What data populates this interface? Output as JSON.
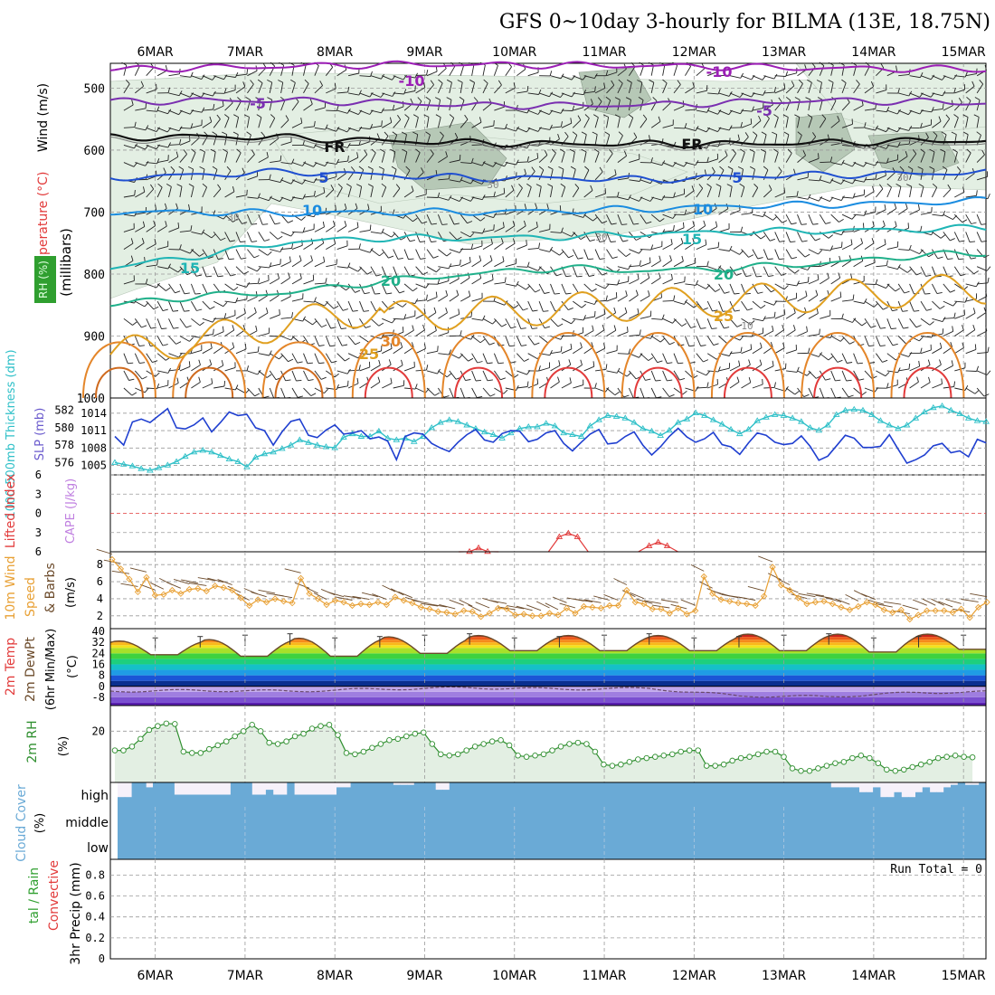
{
  "title": "GFS 0~10day 3-hourly for BILMA (13E, 18.75N)",
  "colors": {
    "grid": "#9a9a9a",
    "rh_fill": "#e3efe3",
    "rh_dark": "#b6c8b6",
    "slp": "#1f3fd0",
    "thickness": "#2fc0c8",
    "li": "#e23b3b",
    "wind_speed": "#e8a034",
    "barb": "#6b4a2a",
    "rh2m": "#2f8f2f",
    "cloud": "#6aaad6",
    "cloud_bg": "#f6f1fa"
  },
  "chart_data": {
    "time_axis": {
      "day_labels": [
        "6MAR",
        "7MAR",
        "8MAR",
        "9MAR",
        "10MAR",
        "11MAR",
        "12MAR",
        "13MAR",
        "14MAR",
        "15MAR"
      ],
      "step_hours": 3,
      "range_days": [
        5.5,
        15.25
      ]
    },
    "panels": [
      {
        "id": "upper-air",
        "type": "heatmap",
        "ylabel": "(millibars)",
        "ylabel_top": "Wind (m/s)",
        "ylabel_mid": "Temperature (°C)",
        "ylabel_rh": "RH (%)",
        "yticks": [
          500,
          600,
          700,
          800,
          900,
          1000
        ],
        "ylim": [
          460,
          1000
        ],
        "temperature_contours": [
          {
            "label": "-10",
            "color": "#9b1fb5",
            "p_by_day": [
              470,
              467,
              465,
              462,
              462,
              463,
              464,
              466,
              468,
              469,
              470
            ]
          },
          {
            "label": "-5",
            "color": "#7a2fb0",
            "p_by_day": [
              522,
              520,
              520,
              523,
              528,
              528,
              527,
              523,
              520,
              522,
              525
            ]
          },
          {
            "label": "FR",
            "color": "#111111",
            "p_by_day": [
              580,
              578,
              580,
              585,
              588,
              590,
              590,
              590,
              588,
              585,
              585
            ]
          },
          {
            "label": "5",
            "color": "#1f4fd0",
            "p_by_day": [
              645,
              640,
              635,
              640,
              645,
              645,
              648,
              642,
              640,
              638,
              635
            ]
          },
          {
            "label": "10",
            "color": "#1a8ce0",
            "p_by_day": [
              700,
              700,
              702,
              700,
              700,
              698,
              695,
              690,
              688,
              685,
              680
            ]
          },
          {
            "label": "15",
            "color": "#1fb5b5",
            "p_by_day": [
              790,
              770,
              748,
              742,
              742,
              740,
              735,
              732,
              730,
              728,
              725
            ]
          },
          {
            "label": "20",
            "color": "#20b08a",
            "p_by_day": [
              850,
              835,
              830,
              812,
              800,
              790,
              795,
              790,
              782,
              770,
              765
            ]
          },
          {
            "label": "25",
            "color": "#e0a020",
            "p_by_day": [
              1000,
              1000,
              1000,
              1000,
              1000,
              1000,
              1000,
              1000,
              1000,
              1000,
              1000
            ]
          }
        ],
        "contour_labels": [
          "-10",
          "-10",
          "-5",
          "-5",
          "FR",
          "FR",
          "5",
          "5",
          "10",
          "10",
          "15",
          "15",
          "20",
          "20",
          "25",
          "25",
          "30",
          "30",
          "30",
          "30",
          "10"
        ],
        "rh_levels": [
          30,
          50,
          70
        ]
      },
      {
        "id": "thickness-slp",
        "type": "line",
        "ylabel_left": "1000-500mb Thickness (dm)",
        "ylabel_right": "SLP (mb)",
        "yticks_left": [
          576,
          578,
          580,
          582
        ],
        "yticks_right": [
          1005,
          1008,
          1011,
          1014
        ],
        "ylim_left": [
          575,
          583
        ],
        "ylim_right": [
          1004,
          1016
        ],
        "series": [
          {
            "name": "Thickness",
            "axis": "left",
            "color": "#2fc0c8",
            "values": [
              576.0,
              575.8,
              575.6,
              575.3,
              575.1,
              575.4,
              575.7,
              576.1,
              576.7,
              577.2,
              577.4,
              577.2,
              576.8,
              576.4,
              576.1,
              575.5,
              576.6,
              577.0,
              577.2,
              577.6,
              578.0,
              578.6,
              578.3,
              578.0,
              577.8,
              577.7,
              578.9,
              579.3,
              579.0,
              579.0,
              579.6,
              578.8,
              578.6,
              578.8,
              578.4,
              579.0,
              580.0,
              580.6,
              580.9,
              580.7,
              580.3,
              579.9,
              579.5,
              579.2,
              578.8,
              579.4,
              579.9,
              580.1,
              580.1,
              580.5,
              580.2,
              579.4,
              579.2,
              579.0,
              580.2,
              580.9,
              581.4,
              581.3,
              581.1,
              580.6,
              579.9,
              579.6,
              579.1,
              579.7,
              580.6,
              581.0,
              581.7,
              581.4,
              580.9,
              580.4,
              579.8,
              579.3,
              579.8,
              580.8,
              581.2,
              581.5,
              581.4,
              581.1,
              580.7,
              580.0,
              579.7,
              580.3,
              581.5,
              582.0,
              582.1,
              582.0,
              581.5,
              580.8,
              580.3,
              579.9,
              580.3,
              581.1,
              581.8,
              582.3,
              582.5,
              582.0,
              581.6,
              581.1,
              580.8,
              580.7
            ]
          },
          {
            "name": "SLP",
            "axis": "right",
            "color": "#1f3fd0",
            "values": [
              1010.0,
              1008.5,
              1012.5,
              1013.0,
              1012.4,
              1013.6,
              1014.8,
              1011.5,
              1011.3,
              1012.0,
              1013.2,
              1010.8,
              1012.4,
              1014.2,
              1013.6,
              1013.8,
              1011.5,
              1011.0,
              1008.5,
              1010.8,
              1012.6,
              1013.0,
              1010.2,
              1009.8,
              1011.1,
              1012.0,
              1010.4,
              1010.6,
              1011.0,
              1009.6,
              1009.9,
              1009.2,
              1006.0,
              1010.0,
              1010.6,
              1010.4,
              1008.8,
              1008.0,
              1007.4,
              1009.0,
              1010.3,
              1011.2,
              1009.4,
              1009.0,
              1010.5,
              1011.0,
              1010.9,
              1009.1,
              1009.5,
              1010.6,
              1011.0,
              1008.8,
              1007.5,
              1009.0,
              1010.4,
              1011.2,
              1008.7,
              1008.9,
              1010.0,
              1010.8,
              1008.5,
              1006.8,
              1008.2,
              1010.0,
              1011.4,
              1009.9,
              1009.0,
              1009.6,
              1010.7,
              1008.6,
              1008.2,
              1006.9,
              1008.9,
              1010.6,
              1010.2,
              1009.0,
              1008.6,
              1008.8,
              1010.1,
              1008.3,
              1005.9,
              1006.6,
              1008.4,
              1010.2,
              1009.7,
              1008.1,
              1008.1,
              1008.3,
              1010.3,
              1007.8,
              1005.4,
              1006.0,
              1006.8,
              1008.4,
              1008.8,
              1007.2,
              1007.5,
              1006.5,
              1009.5,
              1008.9
            ]
          }
        ]
      },
      {
        "id": "lifted-index",
        "type": "line",
        "ylabel_left": "Lifted Index",
        "ylabel_right": "CAPE (J/kg)",
        "yticks": [
          -6,
          -3,
          0,
          3,
          6
        ],
        "yticklabels": [
          "6",
          "3",
          "0",
          "3",
          "6"
        ],
        "ylim": [
          -6,
          6
        ],
        "series": [
          {
            "name": "Lifted Index",
            "color": "#e23b3b",
            "bumps": [
              [
                9.6,
                5.4
              ],
              [
                10.6,
                3.1
              ],
              [
                11.6,
                4.5
              ]
            ]
          }
        ]
      },
      {
        "id": "wind10m",
        "type": "line",
        "ylabel_left": "10m Wind",
        "ylabel_mid": "Speed",
        "ylabel_right": "& Barbs",
        "ylabel_units": "(m/s)",
        "yticks": [
          2,
          4,
          6,
          8
        ],
        "ylim": [
          0.5,
          9.5
        ],
        "series": [
          {
            "name": "Speed",
            "color": "#e8a034",
            "values": [
              8.6,
              7.5,
              6.3,
              4.8,
              6.5,
              4.4,
              4.5,
              5.0,
              4.6,
              5.1,
              5.2,
              4.9,
              5.5,
              5.3,
              5.0,
              4.1,
              3.2,
              3.9,
              3.6,
              4.0,
              3.7,
              3.5,
              6.4,
              4.6,
              4.0,
              3.3,
              3.8,
              3.6,
              3.2,
              3.4,
              3.3,
              3.6,
              3.3,
              4.2,
              3.8,
              3.5,
              3.0,
              2.8,
              2.5,
              2.4,
              2.2,
              2.6,
              2.5,
              1.9,
              2.3,
              2.9,
              2.8,
              2.1,
              2.2,
              2.0,
              2.0,
              2.3,
              2.1,
              2.9,
              2.3,
              3.1,
              3.0,
              2.9,
              3.2,
              3.2,
              5.0,
              3.6,
              3.4,
              2.8,
              2.8,
              2.3,
              2.9,
              2.2,
              2.6,
              6.6,
              4.6,
              3.9,
              3.7,
              3.5,
              3.4,
              3.2,
              4.3,
              7.7,
              5.6,
              5.0,
              4.1,
              3.4,
              3.6,
              3.7,
              3.4,
              3.0,
              2.7,
              3.1,
              3.6,
              3.3,
              2.7,
              2.4,
              2.7,
              1.6,
              2.1,
              2.6,
              2.6,
              2.6,
              2.4,
              2.8,
              1.8,
              3.0,
              3.6
            ]
          }
        ]
      },
      {
        "id": "temp2m",
        "type": "area",
        "ylabel_left": "2m Temp",
        "ylabel_mid": "2m DewPt",
        "ylabel_right": "(6hr Min/Max)",
        "ylabel_units": "(°C)",
        "yticks": [
          -8,
          0,
          8,
          16,
          24,
          32,
          40
        ],
        "ylim": [
          -14,
          42
        ],
        "daily_max": [
          33,
          34,
          35,
          36,
          37,
          37,
          37,
          38,
          38,
          38
        ],
        "daily_min": [
          23,
          22,
          22,
          24,
          26,
          26,
          26,
          26,
          25,
          27
        ],
        "dewpoint_by_day": [
          -3.5,
          -3.0,
          -3.5,
          -2.0,
          -1.0,
          -2.0,
          -1.5,
          -7.0,
          -7.5,
          -4.5,
          -4.0
        ],
        "color_bands": [
          "#5a1fb0",
          "#7a4fd0",
          "#9f7ee0",
          "#c2a9ec",
          "#0a2f8f",
          "#1b55d6",
          "#1f9ce5",
          "#15c0c7",
          "#1ecf7c",
          "#3fd23f",
          "#a8e02a",
          "#f2e21c",
          "#f9b81a",
          "#f58a1b",
          "#ec5a1b",
          "#c9251b",
          "#8f1010"
        ]
      },
      {
        "id": "rh2m",
        "type": "area",
        "ylabel_left": "2m RH",
        "ylabel_units": "(%)",
        "yticks": [
          20
        ],
        "ylim": [
          0,
          30
        ],
        "series": [
          {
            "name": "2m RH",
            "color": "#2f8f2f",
            "values": [
              12.5,
              12.5,
              14.0,
              17.0,
              20.5,
              22.0,
              23.0,
              22.8,
              12.0,
              11.5,
              11.5,
              13.0,
              14.5,
              16.0,
              18.0,
              20.0,
              22.5,
              20.0,
              15.5,
              15.0,
              16.0,
              18.0,
              19.0,
              21.0,
              22.0,
              22.5,
              18.5,
              11.5,
              11.0,
              12.0,
              13.5,
              15.0,
              16.5,
              17.0,
              18.0,
              19.0,
              19.5,
              15.0,
              11.0,
              10.5,
              11.0,
              12.5,
              14.0,
              15.0,
              16.0,
              16.5,
              14.5,
              10.5,
              10.0,
              10.5,
              11.0,
              12.5,
              14.0,
              15.0,
              15.5,
              15.0,
              12.0,
              7.0,
              6.5,
              7.0,
              8.0,
              9.0,
              9.5,
              10.0,
              10.5,
              11.0,
              12.0,
              12.5,
              12.5,
              6.5,
              6.5,
              7.0,
              8.5,
              9.5,
              10.0,
              11.0,
              12.0,
              12.0,
              10.0,
              5.5,
              4.5,
              4.5,
              5.5,
              6.5,
              7.5,
              8.0,
              9.5,
              10.5,
              9.5,
              7.5,
              5.0,
              4.5,
              5.0,
              6.0,
              7.0,
              8.0,
              9.5,
              10.0,
              10.5,
              10.0,
              9.8
            ]
          }
        ]
      },
      {
        "id": "cloud-cover",
        "type": "heatmap",
        "ylabel": "Cloud Cover",
        "ylabel_units": "(%)",
        "row_labels": [
          "high",
          "middle",
          "low"
        ],
        "high_cover": [
          40,
          40,
          100,
          100,
          80,
          100,
          100,
          100,
          50,
          50,
          50,
          50,
          50,
          50,
          50,
          50,
          100,
          100,
          100,
          50,
          50,
          70,
          50,
          50,
          100,
          50,
          50,
          50,
          50,
          50,
          50,
          80,
          80,
          100,
          100,
          100,
          100,
          100,
          100,
          90,
          90,
          90,
          100,
          100,
          100,
          70,
          70,
          100,
          100,
          100,
          100,
          100,
          100,
          100,
          100,
          100,
          100,
          100,
          100,
          100,
          100,
          100,
          100,
          100,
          100,
          100,
          100,
          100,
          100,
          100,
          100,
          100,
          100,
          100,
          100,
          100,
          100,
          100,
          100,
          100,
          100,
          100,
          100,
          100,
          100,
          100,
          100,
          100,
          100,
          100,
          100,
          100,
          100,
          100,
          100,
          100,
          100,
          100,
          100,
          100,
          100,
          80,
          80,
          80,
          80,
          60,
          60,
          80,
          40,
          40,
          60,
          40,
          40,
          60,
          80,
          60,
          60,
          80,
          90,
          100,
          90,
          90,
          100
        ]
      },
      {
        "id": "precip",
        "type": "bar",
        "ylabel_left": "tal / Rain",
        "ylabel_right": "Convective",
        "ylabel_units": "3hr Precip (mm)",
        "annotation": "Run Total = 0",
        "yticks": [
          0,
          0.2,
          0.4,
          0.6,
          0.8
        ],
        "ylim": [
          0,
          0.95
        ],
        "values": []
      }
    ]
  }
}
